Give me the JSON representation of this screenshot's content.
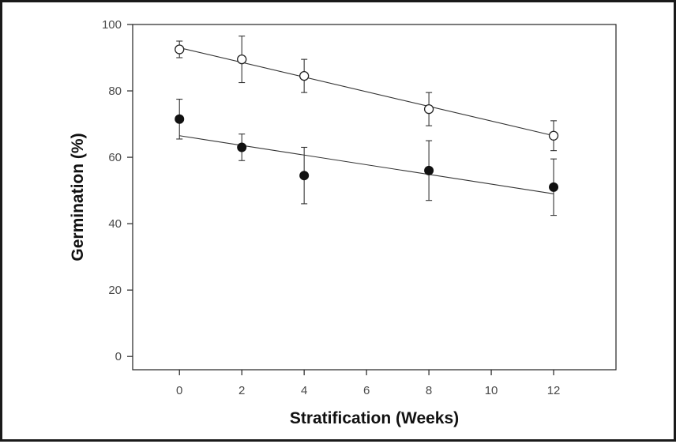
{
  "chart_data": {
    "type": "scatter",
    "title": "",
    "xlabel": "Stratification (Weeks)",
    "ylabel": "Germination (%)",
    "xlim": [
      -1.5,
      14
    ],
    "ylim": [
      -4,
      100
    ],
    "xticks": [
      0,
      2,
      4,
      6,
      8,
      10,
      12
    ],
    "yticks": [
      0,
      20,
      40,
      60,
      80,
      100
    ],
    "grid": false,
    "legend": "none",
    "series": [
      {
        "marker": "open-circle",
        "color": "#222222",
        "x": [
          0,
          2,
          4,
          8,
          12
        ],
        "y": [
          92.5,
          89.5,
          84.5,
          74.5,
          66.5
        ],
        "error": [
          2.5,
          7,
          5,
          5,
          4.5
        ],
        "trendline": {
          "x": [
            0,
            12
          ],
          "y": [
            93,
            66.5
          ]
        }
      },
      {
        "marker": "filled-circle",
        "color": "#111111",
        "x": [
          0,
          2,
          4,
          8,
          12
        ],
        "y": [
          71.5,
          63,
          54.5,
          56,
          51
        ],
        "error": [
          6,
          4,
          8.5,
          9,
          8.5
        ],
        "trendline": {
          "x": [
            0,
            12
          ],
          "y": [
            66.5,
            49
          ]
        }
      }
    ]
  }
}
